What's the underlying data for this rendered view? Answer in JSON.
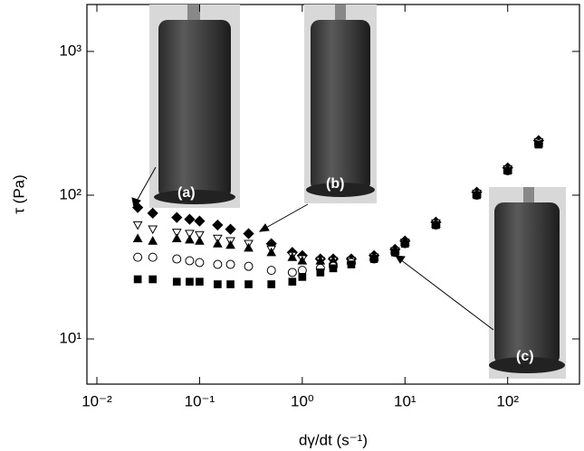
{
  "chart_data": {
    "type": "scatter",
    "xlabel": "dγ/dt (s⁻¹)",
    "ylabel": "τ (Pa)",
    "xscale": "log",
    "yscale": "log",
    "xlim": [
      0.008,
      500
    ],
    "ylim": [
      4.85,
      2120
    ],
    "xticks": [
      {
        "value": 0.01,
        "label": "10⁻²"
      },
      {
        "value": 0.1,
        "label": "10⁻¹"
      },
      {
        "value": 1,
        "label": "10⁰"
      },
      {
        "value": 10,
        "label": "10¹"
      },
      {
        "value": 100,
        "label": "10²"
      }
    ],
    "yticks": [
      {
        "value": 10,
        "label": "10¹"
      },
      {
        "value": 100,
        "label": "10²"
      },
      {
        "value": 1000,
        "label": "10³"
      }
    ],
    "x": [
      0.025,
      0.035,
      0.06,
      0.08,
      0.1,
      0.15,
      0.2,
      0.3,
      0.5,
      0.8,
      1,
      1.5,
      2,
      3,
      5,
      8,
      10,
      20,
      50,
      100,
      200
    ],
    "series": [
      {
        "marker": "diamond",
        "filled": true,
        "color": "#000000",
        "values": [
          82,
          75,
          70,
          68,
          66,
          62,
          58,
          54,
          46,
          40,
          38,
          36,
          36,
          36,
          38,
          42,
          48,
          65,
          105,
          155,
          240
        ]
      },
      {
        "marker": "triangle-down",
        "filled": false,
        "color": "#000000",
        "values": [
          62,
          58,
          55,
          54,
          53,
          50,
          48,
          46,
          42,
          38,
          36,
          35,
          35,
          35,
          37,
          41,
          47,
          64,
          103,
          152,
          235
        ]
      },
      {
        "marker": "triangle-up",
        "filled": true,
        "color": "#000000",
        "values": [
          50,
          48,
          50,
          49,
          48,
          46,
          45,
          43,
          40,
          37,
          35,
          35,
          35,
          35,
          37,
          41,
          47,
          63,
          102,
          150,
          230
        ]
      },
      {
        "marker": "circle",
        "filled": false,
        "color": "#000000",
        "values": [
          37,
          37,
          36,
          35,
          34,
          33,
          33,
          32,
          30,
          29,
          30,
          31,
          32,
          34,
          36,
          40,
          46,
          62,
          100,
          148,
          228
        ]
      },
      {
        "marker": "square",
        "filled": true,
        "color": "#000000",
        "values": [
          26,
          26,
          25,
          25,
          25,
          24,
          24,
          24,
          24,
          25,
          27,
          29,
          31,
          33,
          36,
          40,
          46,
          62,
          100,
          148,
          225
        ]
      }
    ],
    "annotations": [
      "(a)",
      "(b)",
      "(c)"
    ]
  }
}
